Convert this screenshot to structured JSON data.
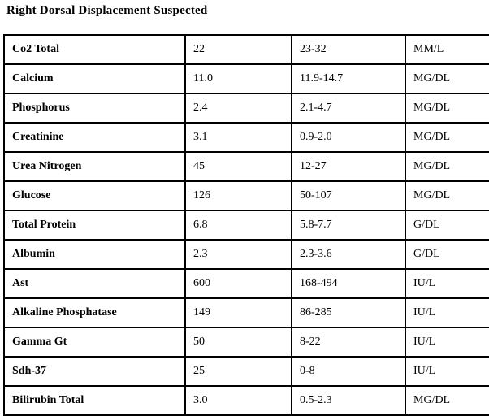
{
  "title": "Right Dorsal Displacement Suspected",
  "colors": {
    "text": "#000000",
    "border": "#000000",
    "background": "#ffffff"
  },
  "table": {
    "columns": [
      "test",
      "value",
      "range",
      "unit"
    ],
    "rows": [
      {
        "test": "Co2 Total",
        "value": "22",
        "range": "23-32",
        "unit": "MM/L"
      },
      {
        "test": "Calcium",
        "value": "11.0",
        "range": "11.9-14.7",
        "unit": "MG/DL"
      },
      {
        "test": "Phosphorus",
        "value": "2.4",
        "range": "2.1-4.7",
        "unit": "MG/DL"
      },
      {
        "test": "Creatinine",
        "value": "3.1",
        "range": "0.9-2.0",
        "unit": "MG/DL"
      },
      {
        "test": "Urea Nitrogen",
        "value": "45",
        "range": "12-27",
        "unit": "MG/DL"
      },
      {
        "test": "Glucose",
        "value": "126",
        "range": "50-107",
        "unit": "MG/DL"
      },
      {
        "test": "Total Protein",
        "value": "6.8",
        "range": "5.8-7.7",
        "unit": "G/DL"
      },
      {
        "test": "Albumin",
        "value": "2.3",
        "range": "2.3-3.6",
        "unit": "G/DL"
      },
      {
        "test": "Ast",
        "value": "600",
        "range": "168-494",
        "unit": "IU/L"
      },
      {
        "test": "Alkaline Phosphatase",
        "value": "149",
        "range": "86-285",
        "unit": "IU/L"
      },
      {
        "test": "Gamma Gt",
        "value": "50",
        "range": "8-22",
        "unit": "IU/L"
      },
      {
        "test": "Sdh-37",
        "value": "25",
        "range": "0-8",
        "unit": "IU/L"
      },
      {
        "test": "Bilirubin Total",
        "value": "3.0",
        "range": "0.5-2.3",
        "unit": "MG/DL"
      }
    ]
  }
}
